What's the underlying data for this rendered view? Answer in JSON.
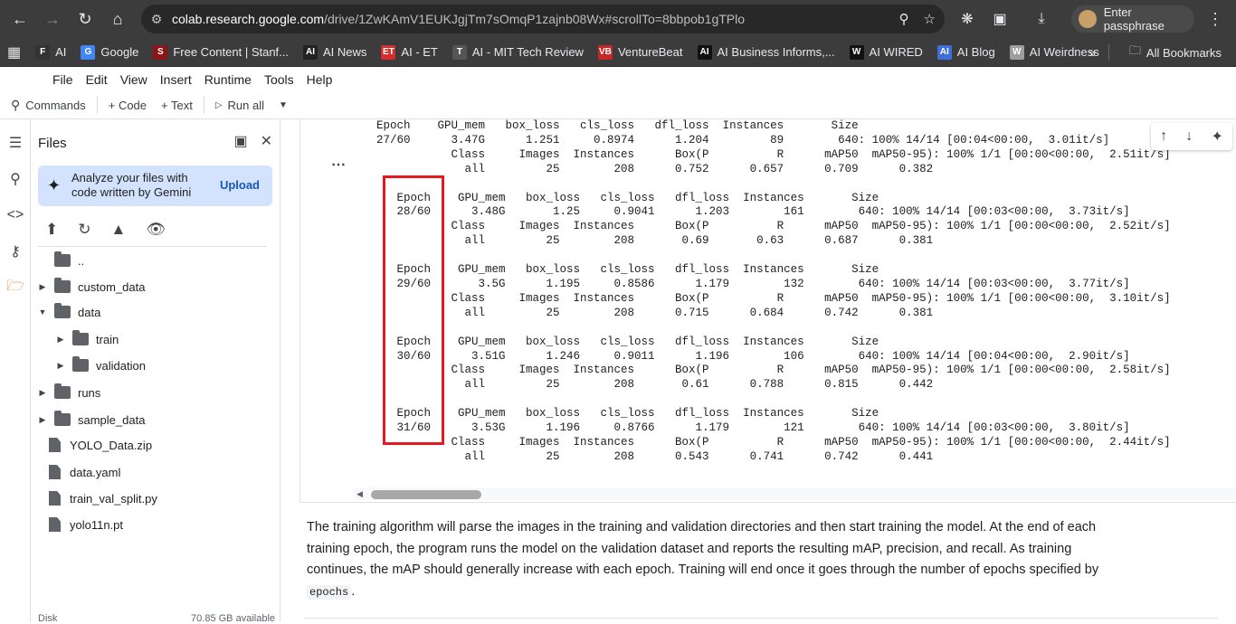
{
  "browser": {
    "url_host": "colab.research.google.com",
    "url_path": "/drive/1ZwKAmV1EUKJgjTm7sOmqP1zajnb08Wx#scrollTo=8bbpob1gTPlo",
    "profile_label": "Enter passphrase",
    "bookmarks": [
      {
        "label": "AI",
        "icon": "F",
        "color": "#333333"
      },
      {
        "label": "Google",
        "icon": "G",
        "color": "#4285f4"
      },
      {
        "label": "Free Content | Stanf...",
        "icon": "S",
        "color": "#8c1515"
      },
      {
        "label": "AI News",
        "icon": "AI",
        "color": "#222222"
      },
      {
        "label": "AI - ET",
        "icon": "ET",
        "color": "#d32f2f"
      },
      {
        "label": "AI - MIT Tech Review",
        "icon": "T",
        "color": "#555555"
      },
      {
        "label": "VentureBeat",
        "icon": "VB",
        "color": "#c62828"
      },
      {
        "label": "AI Business Informs,...",
        "icon": "AI",
        "color": "#111111"
      },
      {
        "label": "AI WIRED",
        "icon": "W",
        "color": "#111111"
      },
      {
        "label": "AI Blog",
        "icon": "AI",
        "color": "#3f6fd8"
      },
      {
        "label": "AI Weirdness",
        "icon": "W",
        "color": "#9e9e9e"
      }
    ],
    "all_bookmarks": "All Bookmarks"
  },
  "menu": [
    "File",
    "Edit",
    "View",
    "Insert",
    "Runtime",
    "Tools",
    "Help"
  ],
  "toolbar": {
    "commands": "Commands",
    "code": "+ Code",
    "text": "+ Text",
    "run_all": "Run all"
  },
  "files": {
    "title": "Files",
    "gemini_text": "Analyze your files with code written by Gemini",
    "upload": "Upload",
    "tree": [
      {
        "label": "..",
        "type": "folder",
        "level": 0,
        "caret": ""
      },
      {
        "label": "custom_data",
        "type": "folder",
        "level": 0,
        "caret": "▶"
      },
      {
        "label": "data",
        "type": "folder",
        "level": 0,
        "caret": "▼"
      },
      {
        "label": "train",
        "type": "folder",
        "level": 1,
        "caret": "▶"
      },
      {
        "label": "validation",
        "type": "folder",
        "level": 1,
        "caret": "▶"
      },
      {
        "label": "runs",
        "type": "folder",
        "level": 0,
        "caret": "▶"
      },
      {
        "label": "sample_data",
        "type": "folder",
        "level": 0,
        "caret": "▶"
      },
      {
        "label": "YOLO_Data.zip",
        "type": "file",
        "level": 0,
        "caret": ""
      },
      {
        "label": "data.yaml",
        "type": "file",
        "level": 0,
        "caret": ""
      },
      {
        "label": "train_val_split.py",
        "type": "file",
        "level": 0,
        "caret": ""
      },
      {
        "label": "yolo11n.pt",
        "type": "file",
        "level": 0,
        "caret": ""
      }
    ],
    "disk_label": "Disk",
    "disk_available": "70.85 GB available"
  },
  "output_log": "Epoch    GPU_mem   box_loss   cls_loss   dfl_loss  Instances       Size\n27/60      3.47G      1.251     0.8974      1.204         89        640: 100% 14/14 [00:04<00:00,  3.01it/s]\n           Class     Images  Instances      Box(P          R      mAP50  mAP50-95): 100% 1/1 [00:00<00:00,  2.51it/s]\n             all         25        208      0.752      0.657      0.709      0.382\n\n   Epoch    GPU_mem   box_loss   cls_loss   dfl_loss  Instances       Size\n   28/60      3.48G       1.25     0.9041      1.203        161        640: 100% 14/14 [00:03<00:00,  3.73it/s]\n           Class     Images  Instances      Box(P          R      mAP50  mAP50-95): 100% 1/1 [00:00<00:00,  2.52it/s]\n             all         25        208       0.69       0.63      0.687      0.381\n\n   Epoch    GPU_mem   box_loss   cls_loss   dfl_loss  Instances       Size\n   29/60       3.5G      1.195     0.8586      1.179        132        640: 100% 14/14 [00:03<00:00,  3.77it/s]\n           Class     Images  Instances      Box(P          R      mAP50  mAP50-95): 100% 1/1 [00:00<00:00,  3.10it/s]\n             all         25        208      0.715      0.684      0.742      0.381\n\n   Epoch    GPU_mem   box_loss   cls_loss   dfl_loss  Instances       Size\n   30/60      3.51G      1.246     0.9011      1.196        106        640: 100% 14/14 [00:04<00:00,  2.90it/s]\n           Class     Images  Instances      Box(P          R      mAP50  mAP50-95): 100% 1/1 [00:00<00:00,  2.58it/s]\n             all         25        208       0.61      0.788      0.815      0.442\n\n   Epoch    GPU_mem   box_loss   cls_loss   dfl_loss  Instances       Size\n   31/60      3.53G      1.196     0.8766      1.179        121        640: 100% 14/14 [00:03<00:00,  3.80it/s]\n           Class     Images  Instances      Box(P          R      mAP50  mAP50-95): 100% 1/1 [00:00<00:00,  2.44it/s]\n             all         25        208      0.543      0.741      0.742      0.441",
  "text_cell": {
    "body": "The training algorithm will parse the images in the training and validation directories and then start training the model. At the end of each training epoch, the program runs the model on the validation dataset and reports the resulting mAP, precision, and recall. As training continues, the mAP should generally increase with each epoch. Training will end once it goes through the number of epochs specified by",
    "code": "epochs",
    "tail": "."
  },
  "colors": {
    "highlight_border": "#e5191f",
    "chrome_bg": "#3c3c3c",
    "gemini_card": "#d3e3fd",
    "active_rail": "#e8710a"
  }
}
